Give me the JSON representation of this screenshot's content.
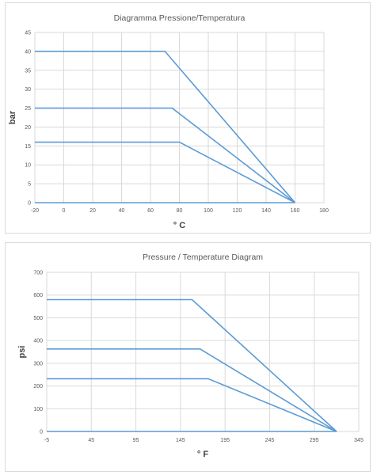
{
  "chart_data": [
    {
      "type": "line",
      "title": "Diagramma Pressione/Temperatura",
      "xlabel": "° C",
      "ylabel": "bar",
      "xlim": [
        -20,
        180
      ],
      "ylim": [
        0,
        45
      ],
      "xticks": [
        -20,
        0,
        20,
        40,
        60,
        80,
        100,
        120,
        140,
        160,
        180
      ],
      "yticks": [
        0,
        5,
        10,
        15,
        20,
        25,
        30,
        35,
        40,
        45
      ],
      "grid": true,
      "legend": "none",
      "color": "#5b9bd5",
      "series": [
        {
          "x": [
            -20,
            70,
            160
          ],
          "y": [
            40,
            40,
            0
          ]
        },
        {
          "x": [
            -20,
            75,
            160
          ],
          "y": [
            25,
            25,
            0
          ]
        },
        {
          "x": [
            -20,
            80,
            160
          ],
          "y": [
            16,
            16,
            0
          ]
        },
        {
          "x": [
            -20,
            160
          ],
          "y": [
            0,
            0
          ]
        }
      ]
    },
    {
      "type": "line",
      "title": "Pressure / Temperature Diagram",
      "xlabel": "° F",
      "ylabel": "psi",
      "xlim": [
        -5,
        345
      ],
      "ylim": [
        0,
        700
      ],
      "xticks": [
        -5,
        45,
        95,
        145,
        195,
        245,
        295,
        345
      ],
      "yticks": [
        0,
        100,
        200,
        300,
        400,
        500,
        600,
        700
      ],
      "grid": true,
      "legend": "none",
      "color": "#5b9bd5",
      "series": [
        {
          "x": [
            -5,
            158,
            320
          ],
          "y": [
            580,
            580,
            0
          ]
        },
        {
          "x": [
            -5,
            167,
            320
          ],
          "y": [
            363,
            363,
            0
          ]
        },
        {
          "x": [
            -5,
            176,
            320
          ],
          "y": [
            232,
            232,
            0
          ]
        },
        {
          "x": [
            -5,
            320
          ],
          "y": [
            0,
            0
          ]
        }
      ]
    }
  ]
}
